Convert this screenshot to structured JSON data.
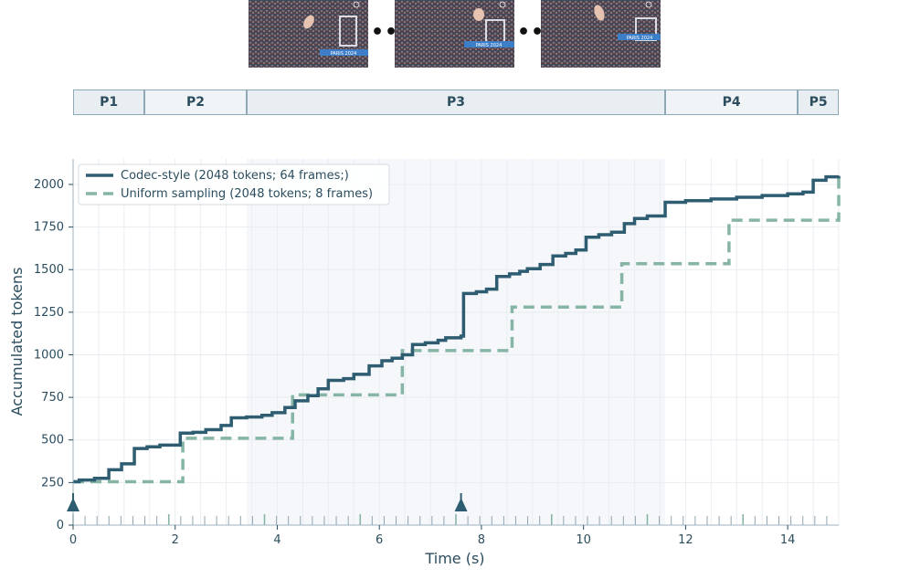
{
  "figure": {
    "frames": [
      {
        "banner": "PARIS 2024"
      },
      {
        "banner": "PARIS 2024"
      },
      {
        "banner": "PARIS 2024"
      }
    ],
    "ellipsis": "•••",
    "phases": [
      {
        "label": "P1",
        "start": 0.0,
        "end": 1.4
      },
      {
        "label": "P2",
        "start": 1.4,
        "end": 3.4
      },
      {
        "label": "P3",
        "start": 3.4,
        "end": 11.6
      },
      {
        "label": "P4",
        "start": 11.6,
        "end": 14.2
      },
      {
        "label": "P5",
        "start": 14.2,
        "end": 15.0
      }
    ],
    "colors": {
      "codec": "#2e5c71",
      "uniform": "#86b5a6",
      "phase_fill": "#e8eef2",
      "phase_fill_light": "#f0f4f7",
      "highlight": "#f5f7fa",
      "axis_text": "#2b4d5e"
    }
  },
  "chart_data": {
    "type": "line",
    "xlabel": "Time (s)",
    "ylabel": "Accumulated tokens",
    "xlim": [
      0,
      15
    ],
    "ylim": [
      0,
      2150
    ],
    "xticks": [
      0,
      2,
      4,
      6,
      8,
      10,
      12,
      14
    ],
    "yticks": [
      0,
      250,
      500,
      750,
      1000,
      1250,
      1500,
      1750,
      2000
    ],
    "grid": true,
    "legend": "top-left",
    "highlight_range": [
      3.4,
      11.6
    ],
    "markers": [
      0.0,
      7.6
    ],
    "frame_ticks_count": 64,
    "series": [
      {
        "name": "Codec-style (2048 tokens; 64 frames;)",
        "style": "solid",
        "x": [
          0.0,
          0.12,
          0.42,
          0.7,
          0.95,
          1.2,
          1.45,
          1.7,
          2.1,
          2.35,
          2.6,
          2.9,
          3.1,
          3.4,
          3.7,
          3.9,
          4.15,
          4.35,
          4.6,
          4.8,
          5.0,
          5.3,
          5.5,
          5.8,
          6.05,
          6.25,
          6.45,
          6.65,
          6.9,
          7.15,
          7.3,
          7.6,
          7.65,
          7.9,
          8.1,
          8.3,
          8.55,
          8.75,
          8.9,
          9.15,
          9.4,
          9.65,
          9.85,
          10.05,
          10.3,
          10.55,
          10.8,
          11.0,
          11.25,
          11.6,
          12.0,
          12.5,
          13.0,
          13.5,
          14.0,
          14.3,
          14.5,
          14.75,
          15.0
        ],
        "y": [
          255,
          265,
          275,
          325,
          360,
          450,
          460,
          470,
          540,
          545,
          560,
          585,
          630,
          635,
          645,
          660,
          690,
          730,
          760,
          800,
          850,
          860,
          885,
          935,
          965,
          980,
          1000,
          1060,
          1070,
          1085,
          1100,
          1110,
          1360,
          1370,
          1385,
          1460,
          1475,
          1490,
          1505,
          1530,
          1580,
          1595,
          1615,
          1690,
          1705,
          1720,
          1770,
          1800,
          1815,
          1895,
          1905,
          1915,
          1925,
          1935,
          1945,
          1955,
          2025,
          2045,
          2050
        ]
      },
      {
        "name": "Uniform sampling (2048 tokens; 8 frames)",
        "style": "dashed",
        "x": [
          0.0,
          2.15,
          4.3,
          6.45,
          8.6,
          10.75,
          12.85,
          15.0
        ],
        "y": [
          255,
          510,
          765,
          1025,
          1280,
          1535,
          1790,
          2045
        ]
      }
    ]
  }
}
